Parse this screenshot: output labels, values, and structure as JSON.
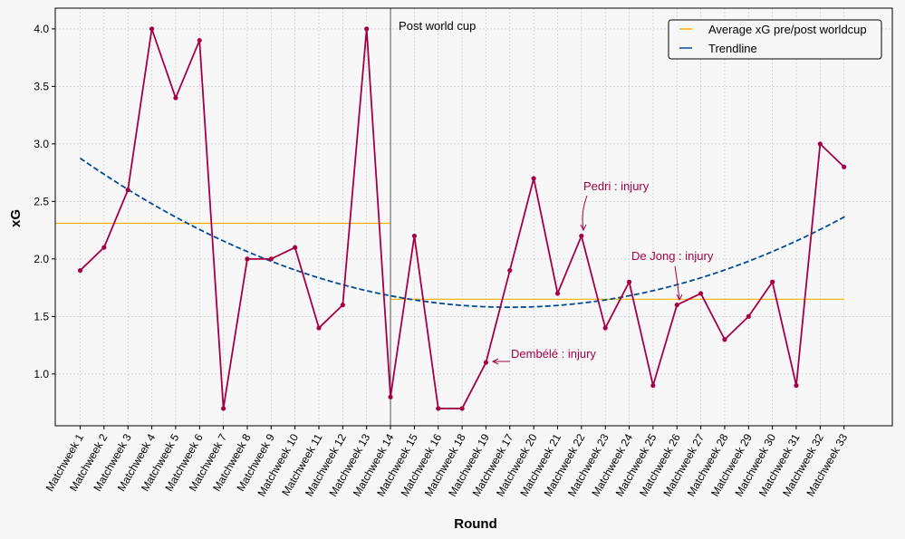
{
  "chart_data": {
    "type": "line",
    "xlabel": "Round",
    "ylabel": "xG",
    "ylim": [
      0.55,
      4.18
    ],
    "yticks": [
      1.0,
      1.5,
      2.0,
      2.5,
      3.0,
      3.5,
      4.0
    ],
    "grid": true,
    "categories": [
      "Matchweek 1",
      "Matchweek 2",
      "Matchweek 3",
      "Matchweek 4",
      "Matchweek 5",
      "Matchweek 6",
      "Matchweek 7",
      "Matchweek 8",
      "Matchweek 9",
      "Matchweek 10",
      "Matchweek 11",
      "Matchweek 12",
      "Matchweek 13",
      "Matchweek 14",
      "Matchweek 15",
      "Matchweek 16",
      "Matchweek 18",
      "Matchweek 19",
      "Matchweek 17",
      "Matchweek 20",
      "Matchweek 21",
      "Matchweek 22",
      "Matchweek 23",
      "Matchweek 24",
      "Matchweek 25",
      "Matchweek 26",
      "Matchweek 27",
      "Matchweek 28",
      "Matchweek 29",
      "Matchweek 30",
      "Matchweek 31",
      "Matchweek 32",
      "Matchweek 33"
    ],
    "series": [
      {
        "values": [
          1.9,
          2.1,
          2.6,
          4.0,
          3.4,
          3.9,
          0.7,
          2.0,
          2.0,
          2.1,
          1.4,
          1.6,
          4.0,
          0.8,
          2.2,
          0.7,
          0.7,
          1.1,
          1.9,
          2.7,
          1.7,
          2.2,
          1.4,
          1.8,
          0.9,
          1.6,
          1.7,
          1.3,
          1.5,
          1.8,
          0.9,
          3.0,
          2.8
        ],
        "color": "#a50044"
      },
      {
        "name": "Average xG pre/post worldcup",
        "color": "#f5b500",
        "segments": [
          {
            "from_index": -1,
            "to_index": 13,
            "value": 2.31
          },
          {
            "from_index": 13,
            "to_index": 32,
            "value": 1.65
          }
        ]
      },
      {
        "name": "Trendline",
        "color": "#004d98",
        "style": "dashed",
        "polynomial": {
          "x0": 19,
          "a": 0.004,
          "c": 1.58
        },
        "x_range": [
          1,
          33.05
        ]
      }
    ],
    "vline": {
      "index": 13,
      "label": "Post world cup",
      "color": "#555555"
    },
    "annotations": [
      {
        "text": "Pedri : injury",
        "index": 21
      },
      {
        "text": "De Jong : injury",
        "index": 25
      },
      {
        "text": "Dembélé : injury",
        "index": 17
      }
    ],
    "legend": {
      "position": "top-right",
      "items": [
        "Average xG pre/post worldcup",
        "Trendline"
      ]
    },
    "colors": {
      "point_line": "#a50044",
      "average": "#f5b500",
      "trend": "#004d98",
      "background": "#f7f7f7"
    }
  }
}
